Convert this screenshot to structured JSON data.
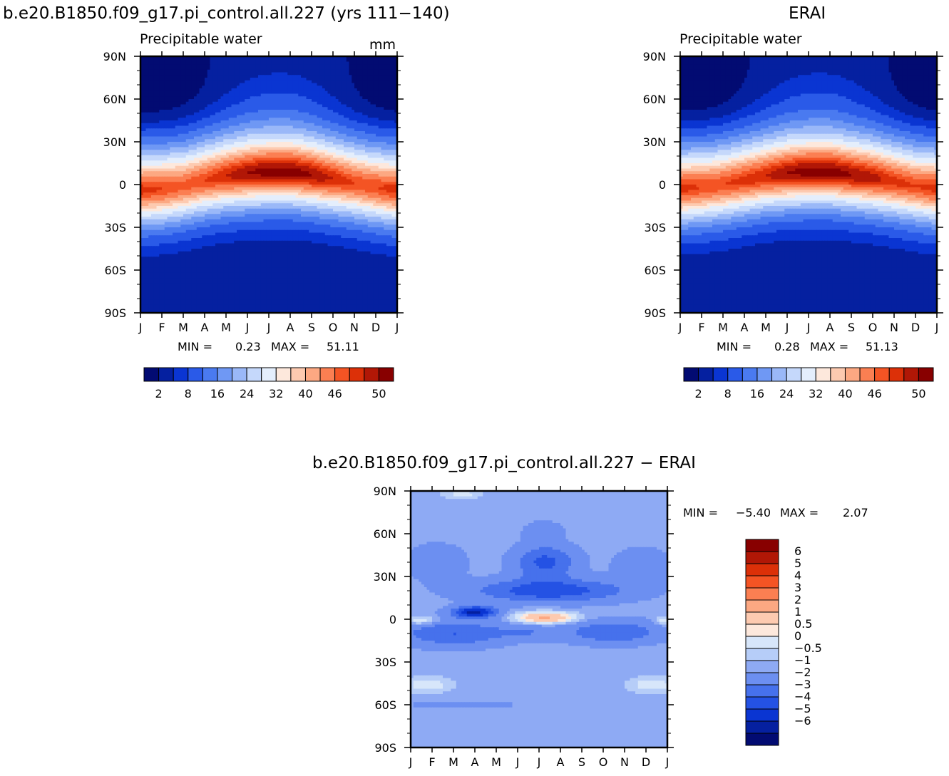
{
  "panels": [
    {
      "id": "model",
      "title": "b.e20.B1850.f09_g17.pi_control.all.227 (yrs 111−140)",
      "subtitle": "Precipitable water",
      "units": "mm",
      "min_label": "MIN =",
      "min_value": "0.23",
      "max_label": "MAX =",
      "max_value": "51.11"
    },
    {
      "id": "obs",
      "title": "ERAI",
      "subtitle": "Precipitable water",
      "units": "",
      "min_label": "MIN =",
      "min_value": "0.28",
      "max_label": "MAX =",
      "max_value": "51.13"
    },
    {
      "id": "diff",
      "title": "b.e20.B1850.f09_g17.pi_control.all.227 − ERAI",
      "subtitle": "",
      "units": "",
      "min_label": "MIN =",
      "min_value": "−5.40",
      "max_label": "MAX =",
      "max_value": "2.07"
    }
  ],
  "chart_data": [
    {
      "type": "heatmap",
      "title": "Precipitable water",
      "units": "mm",
      "x_ticks": [
        "J",
        "F",
        "M",
        "A",
        "M",
        "J",
        "J",
        "A",
        "S",
        "O",
        "N",
        "D",
        "J"
      ],
      "y_ticks": [
        "90N",
        "60N",
        "30N",
        "0",
        "30S",
        "60S",
        "90S"
      ],
      "ylim": [
        -90,
        90
      ],
      "levels": [
        2,
        5,
        8,
        12,
        16,
        20,
        24,
        28,
        32,
        35,
        38,
        41,
        44,
        46,
        48,
        50
      ],
      "colorbar_labels": [
        "2",
        "8",
        "16",
        "24",
        "32",
        "40",
        "46",
        "50"
      ],
      "colors": [
        "#020b72",
        "#0520a0",
        "#0a35d2",
        "#2a5ae8",
        "#4a7af0",
        "#6f98f4",
        "#9ab8f8",
        "#c5d8fb",
        "#e4eefc",
        "#fde8dc",
        "#fdcab0",
        "#fca882",
        "#fb7f52",
        "#f45424",
        "#dc3008",
        "#b11706",
        "#880000"
      ],
      "min": 0.23,
      "max": 51.11,
      "itcz_lat_by_month": [
        -4,
        -3,
        -1,
        3,
        6,
        8,
        9,
        9,
        7,
        4,
        1,
        -2,
        -4
      ],
      "peak_value_by_month": [
        47,
        46,
        45,
        46,
        48,
        50,
        51,
        51,
        50,
        48,
        46,
        46,
        47
      ]
    },
    {
      "type": "heatmap",
      "title": "Precipitable water",
      "x_ticks": [
        "J",
        "F",
        "M",
        "A",
        "M",
        "J",
        "J",
        "A",
        "S",
        "O",
        "N",
        "D",
        "J"
      ],
      "y_ticks": [
        "90N",
        "60N",
        "30N",
        "0",
        "30S",
        "60S",
        "90S"
      ],
      "ylim": [
        -90,
        90
      ],
      "levels": [
        2,
        5,
        8,
        12,
        16,
        20,
        24,
        28,
        32,
        35,
        38,
        41,
        44,
        46,
        48,
        50
      ],
      "colorbar_labels": [
        "2",
        "8",
        "16",
        "24",
        "32",
        "40",
        "46",
        "50"
      ],
      "colors": [
        "#020b72",
        "#0520a0",
        "#0a35d2",
        "#2a5ae8",
        "#4a7af0",
        "#6f98f4",
        "#9ab8f8",
        "#c5d8fb",
        "#e4eefc",
        "#fde8dc",
        "#fdcab0",
        "#fca882",
        "#fb7f52",
        "#f45424",
        "#dc3008",
        "#b11706",
        "#880000"
      ],
      "min": 0.28,
      "max": 51.13,
      "itcz_lat_by_month": [
        -3,
        -2,
        0,
        3,
        6,
        8,
        9,
        9,
        7,
        5,
        2,
        -1,
        -3
      ],
      "peak_value_by_month": [
        47,
        46,
        46,
        47,
        48,
        50,
        51,
        51,
        50,
        49,
        47,
        46,
        47
      ]
    },
    {
      "type": "heatmap",
      "title": "b.e20.B1850.f09_g17.pi_control.all.227 − ERAI",
      "x_ticks": [
        "J",
        "F",
        "M",
        "A",
        "M",
        "J",
        "J",
        "A",
        "S",
        "O",
        "N",
        "D",
        "J"
      ],
      "y_ticks": [
        "90N",
        "60N",
        "30N",
        "0",
        "30S",
        "60S",
        "90S"
      ],
      "ylim": [
        -90,
        90
      ],
      "levels": [
        -6,
        -5,
        -4,
        -3,
        -2,
        -1,
        -0.5,
        0,
        0.5,
        1,
        2,
        3,
        4,
        5,
        6
      ],
      "colorbar_labels": [
        "6",
        "5",
        "4",
        "3",
        "2",
        "1",
        "0.5",
        "0",
        "−0.5",
        "−1",
        "−2",
        "−3",
        "−4",
        "−5",
        "−6"
      ],
      "colors": [
        "#880000",
        "#b11706",
        "#dc3008",
        "#f45424",
        "#fb7f52",
        "#fca882",
        "#fdcab0",
        "#fde8dc",
        "#d7e6fa",
        "#b6cdf8",
        "#8eaaf4",
        "#6c8ff1",
        "#4671ec",
        "#2452e4",
        "#0a35d2",
        "#0520a0",
        "#020b72"
      ],
      "min": -5.4,
      "max": 2.07
    }
  ]
}
